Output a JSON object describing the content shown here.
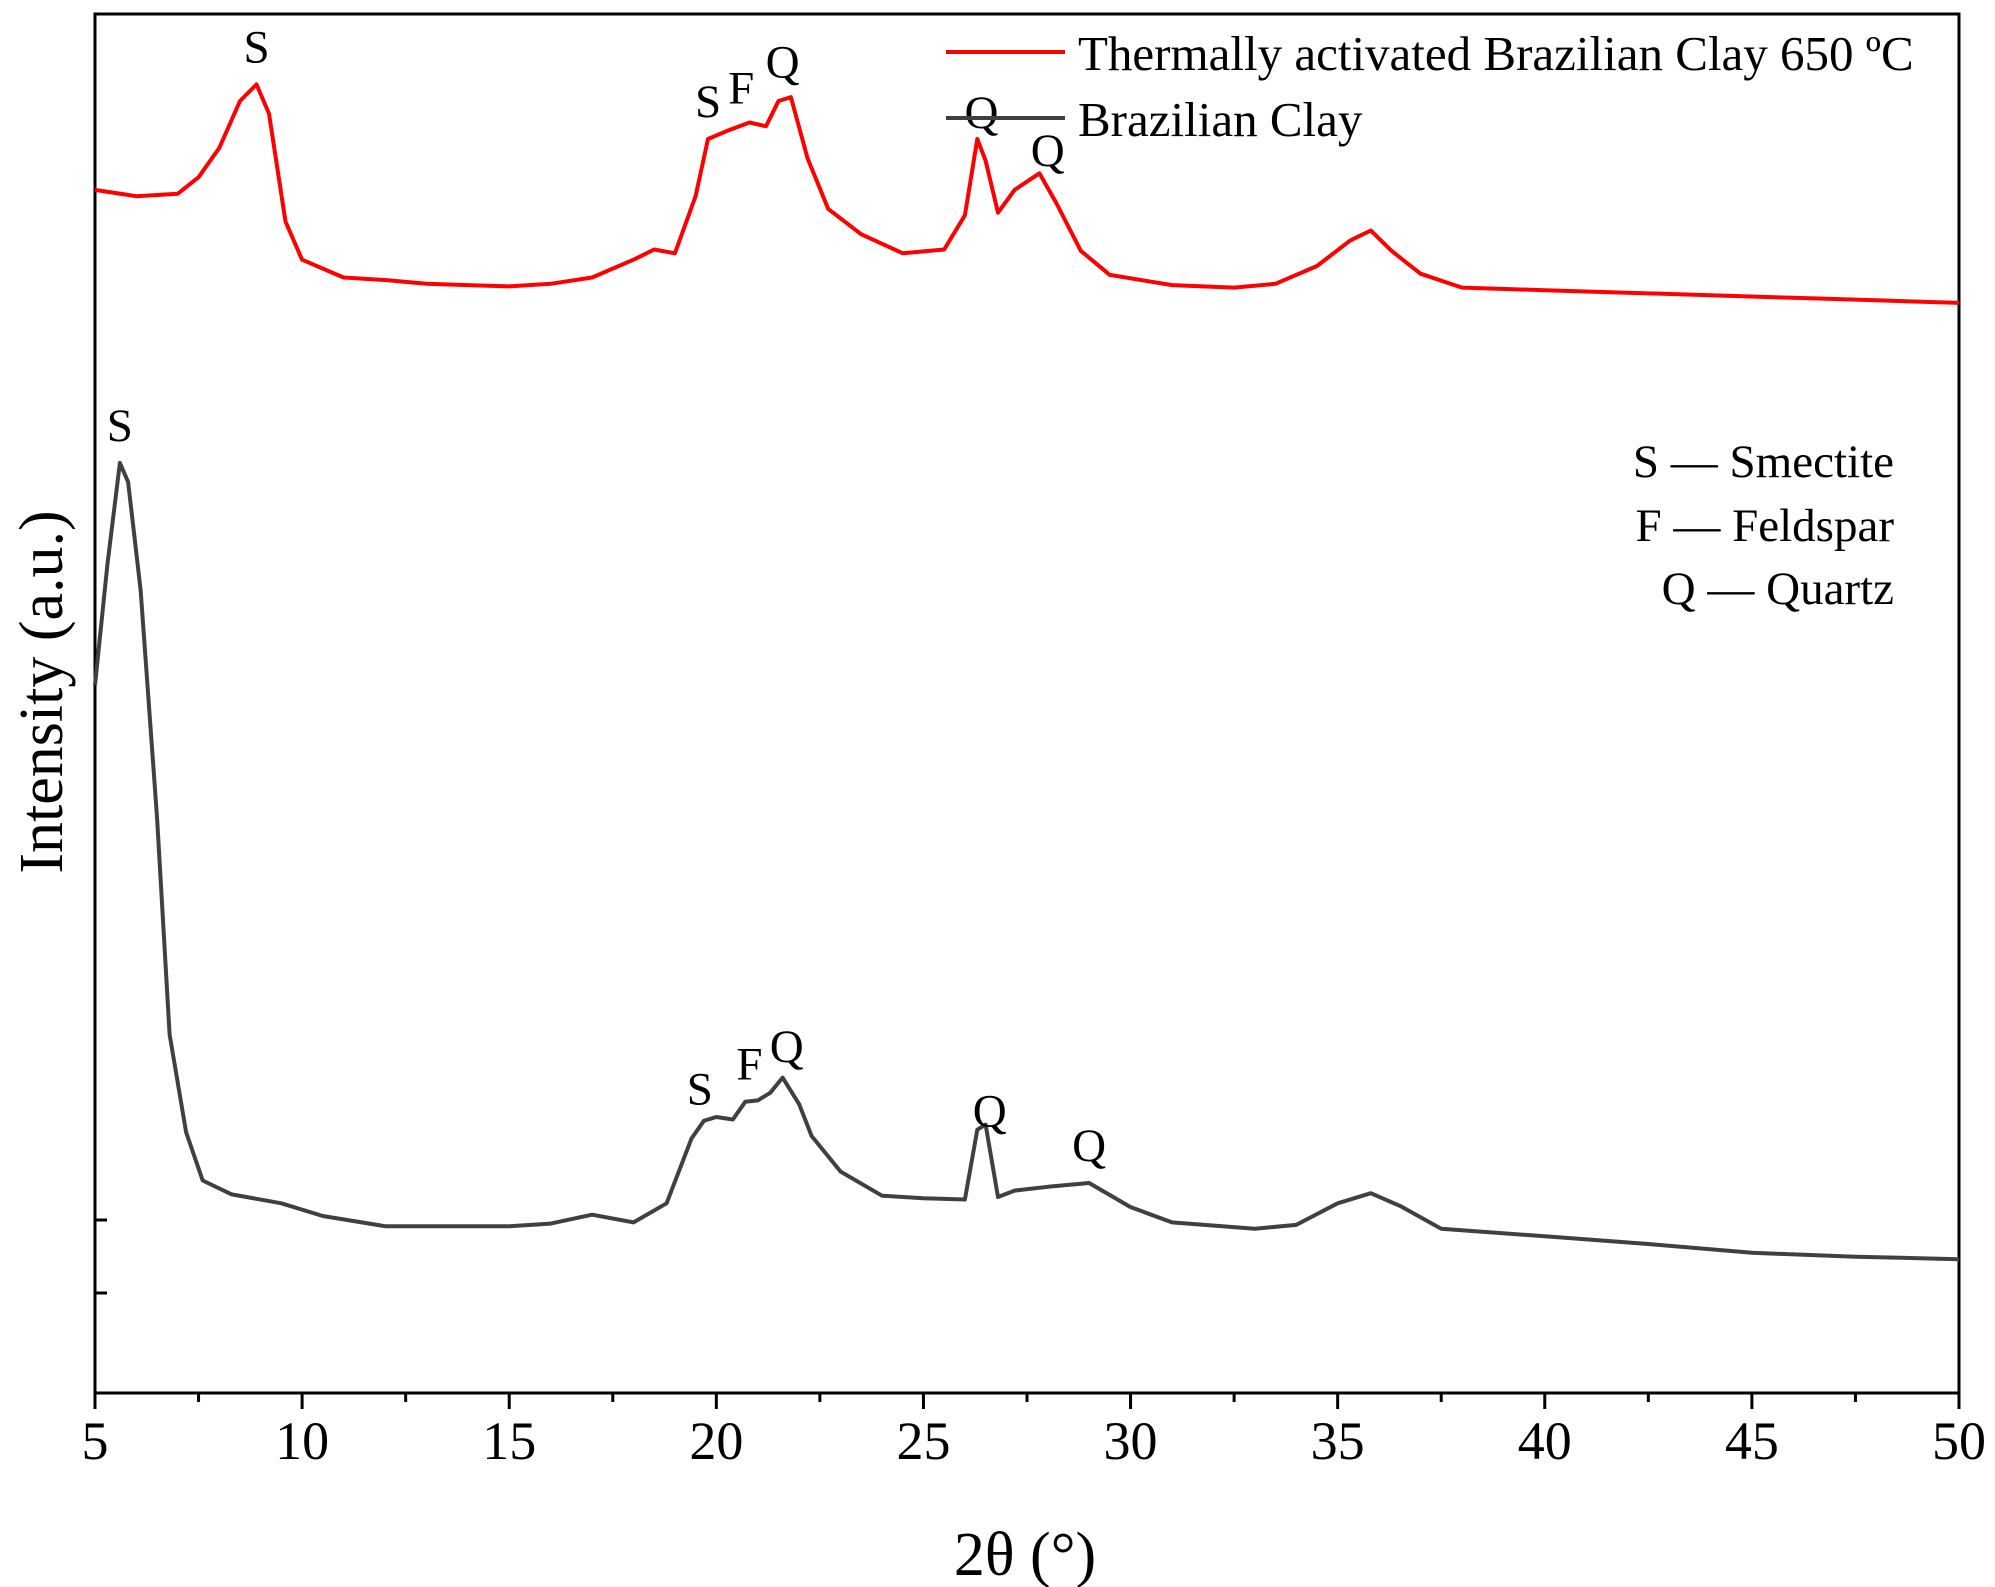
{
  "chart_data": {
    "type": "line",
    "xlabel": "2θ (°)",
    "ylabel": "Intensity (a.u.)",
    "xlim": [
      5,
      50
    ],
    "ylim": [
      0,
      100
    ],
    "x_ticks": [
      5,
      10,
      15,
      20,
      25,
      30,
      35,
      40,
      45,
      50
    ],
    "y_ticks_labeled": false,
    "grid": false,
    "legend_position": "top-right",
    "series": [
      {
        "name": "Thermally activated Brazilian Clay 650 ºC",
        "color": "#ff0000",
        "x": [
          5,
          6,
          7,
          7.5,
          8,
          8.5,
          8.9,
          9.2,
          9.6,
          10,
          11,
          12,
          13,
          14,
          15,
          16,
          17,
          18,
          18.5,
          19,
          19.5,
          19.8,
          20.3,
          20.8,
          21.2,
          21.5,
          21.8,
          22.2,
          22.7,
          23.5,
          24.5,
          25.5,
          26,
          26.3,
          26.5,
          26.8,
          27.2,
          27.8,
          28.2,
          28.8,
          29.5,
          31,
          32.5,
          33.5,
          34.5,
          35.3,
          35.8,
          36.3,
          37,
          38,
          40,
          42,
          44,
          46,
          48,
          50
        ],
        "y": [
          84.5,
          84,
          84.2,
          85.5,
          87.8,
          91.5,
          92.8,
          90.5,
          82,
          79,
          77.6,
          77.4,
          77.1,
          77,
          76.9,
          77.1,
          77.6,
          79,
          79.8,
          79.5,
          84,
          88.5,
          89.2,
          89.8,
          89.5,
          91.5,
          91.8,
          87,
          83,
          81,
          79.5,
          79.8,
          82.5,
          88.5,
          86.8,
          82.7,
          84.5,
          85.8,
          83.5,
          79.7,
          77.8,
          77,
          76.8,
          77.1,
          78.5,
          80.5,
          81.3,
          79.7,
          77.9,
          76.8,
          76.6,
          76.4,
          76.2,
          76,
          75.8,
          75.6
        ],
        "peak_labels": [
          {
            "x": 8.9,
            "text": "S"
          },
          {
            "x": 19.8,
            "text": "S"
          },
          {
            "x": 20.6,
            "text": "F"
          },
          {
            "x": 21.6,
            "text": "Q"
          },
          {
            "x": 26.4,
            "text": "Q"
          },
          {
            "x": 28.0,
            "text": "Q"
          }
        ]
      },
      {
        "name": "Brazilian Clay",
        "color": "#404040",
        "x": [
          5,
          5.3,
          5.6,
          5.8,
          6.1,
          6.5,
          6.8,
          7.2,
          7.6,
          8.3,
          9.5,
          10.5,
          12,
          13,
          15,
          16,
          17,
          18,
          18.8,
          19.4,
          19.7,
          20,
          20.4,
          20.7,
          21,
          21.3,
          21.6,
          22,
          22.3,
          23,
          24,
          25,
          26,
          26.3,
          26.5,
          26.8,
          27.2,
          28,
          29,
          30,
          31,
          33,
          34,
          35,
          35.8,
          36.5,
          37.5,
          40,
          42.5,
          45,
          47.5,
          50
        ],
        "y": [
          45.5,
          55,
          63,
          61.5,
          53,
          35,
          18,
          10.3,
          6.5,
          5.4,
          4.7,
          3.7,
          2.9,
          2.9,
          2.9,
          3.1,
          3.8,
          3.2,
          4.7,
          9.8,
          11.2,
          11.5,
          11.3,
          12.7,
          12.8,
          13.4,
          14.6,
          12.5,
          10,
          7.2,
          5.3,
          5.1,
          5,
          10.5,
          10.9,
          5.2,
          5.7,
          6,
          6.3,
          4.4,
          3.2,
          2.7,
          3,
          4.7,
          5.5,
          4.5,
          2.7,
          2.1,
          1.5,
          0.8,
          0.5,
          0.3
        ],
        "peak_labels": [
          {
            "x": 5.6,
            "text": "S"
          },
          {
            "x": 19.6,
            "text": "S"
          },
          {
            "x": 20.8,
            "text": "F"
          },
          {
            "x": 21.7,
            "text": "Q"
          },
          {
            "x": 26.6,
            "text": "Q"
          },
          {
            "x": 29.0,
            "text": "Q"
          }
        ]
      }
    ],
    "annotations": {
      "phase_key": [
        {
          "symbol": "S",
          "dash": "—",
          "name": "Smectite"
        },
        {
          "symbol": "F",
          "dash": "—",
          "name": "Feldspar"
        },
        {
          "symbol": "Q",
          "dash": "—",
          "name": "Quartz"
        }
      ]
    }
  }
}
